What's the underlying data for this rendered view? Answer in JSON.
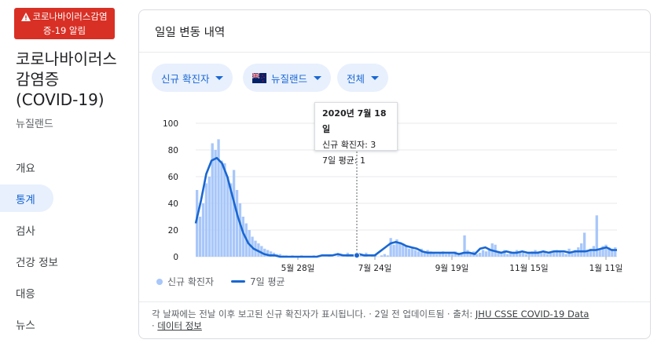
{
  "alert": {
    "text": "코로나바이러스감염증-19 알림"
  },
  "topic": {
    "title": "코로나바이러스 감염증 (COVID-19)",
    "region": "뉴질랜드"
  },
  "nav": {
    "items": [
      "개요",
      "통계",
      "검사",
      "건강 정보",
      "대응",
      "뉴스"
    ],
    "active": "통계"
  },
  "card": {
    "title": "일일 변동 내역",
    "chips": {
      "metric": "신규 확진자",
      "location": "뉴질랜드",
      "range": "전체"
    }
  },
  "tooltip": {
    "date": "2020년 7월 18일",
    "cases": "신규 확진자: 3",
    "avg": "7일 평균: 1"
  },
  "legend": {
    "bars": "신규 확진자",
    "line": "7일 평균"
  },
  "footer": {
    "note": "각 날짜에는 전날 이후 보고된 신규 확진자가 표시됩니다. · 2일 전 업데이트됨 · 출처:",
    "source": "JHU CSSE COVID-19 Data",
    "sep": "·",
    "about": "데이터 정보"
  },
  "colors": {
    "bar": "#a8c7fa",
    "line": "#1967d2",
    "alert": "#d93025",
    "chip_bg": "#e8f0fe"
  },
  "chart_data": {
    "type": "bar",
    "title": "",
    "ylim": [
      0,
      100
    ],
    "yticks": [
      0,
      20,
      40,
      60,
      80,
      100
    ],
    "xticks": [
      "5월 28일",
      "7월 24일",
      "9월 19일",
      "11월 15일",
      "1월 11일"
    ],
    "grid": true,
    "legend": "bottom-left",
    "series": [
      {
        "name": "신규 확진자",
        "type": "bar",
        "values": [
          50,
          30,
          40,
          55,
          60,
          85,
          80,
          88,
          72,
          70,
          60,
          55,
          65,
          50,
          40,
          30,
          25,
          20,
          15,
          12,
          10,
          8,
          6,
          5,
          4,
          3,
          2,
          2,
          1,
          1,
          0,
          1,
          0,
          0,
          1,
          0,
          0,
          0,
          1,
          0,
          0,
          0,
          0,
          1,
          0,
          0,
          2,
          1,
          0,
          3,
          2,
          1,
          1,
          2,
          1,
          3,
          0,
          1,
          2,
          0,
          1,
          2,
          1,
          14,
          9,
          13,
          11,
          10,
          8,
          6,
          7,
          5,
          4,
          6,
          3,
          5,
          4,
          3,
          2,
          3,
          4,
          2,
          3,
          2,
          4,
          3,
          2,
          16,
          5,
          3,
          4,
          2,
          3,
          5,
          4,
          6,
          10,
          9,
          4,
          3,
          5,
          2,
          4,
          3,
          5,
          4,
          3,
          2,
          3,
          4,
          5,
          4,
          3,
          4,
          2,
          3,
          4,
          5,
          4,
          3,
          2,
          6,
          4,
          5,
          7,
          10,
          18,
          4,
          6,
          8,
          31,
          6,
          8,
          9,
          7,
          6,
          7
        ]
      },
      {
        "name": "7일 평균",
        "type": "line",
        "values": [
          25,
          42,
          62,
          72,
          74,
          70,
          60,
          45,
          30,
          18,
          10,
          6,
          4,
          2,
          1,
          1,
          0,
          0,
          0,
          0,
          0,
          0,
          0,
          0,
          1,
          1,
          1,
          2,
          1,
          1,
          1,
          2,
          1,
          1,
          1,
          4,
          7,
          10,
          11,
          10,
          8,
          7,
          6,
          4,
          3,
          3,
          3,
          3,
          3,
          3,
          2,
          3,
          3,
          2,
          6,
          7,
          5,
          4,
          3,
          4,
          3,
          3,
          4,
          3,
          3,
          3,
          4,
          3,
          4,
          4,
          4,
          3,
          4,
          4,
          4,
          5,
          5,
          6,
          7,
          5,
          5
        ]
      }
    ]
  }
}
